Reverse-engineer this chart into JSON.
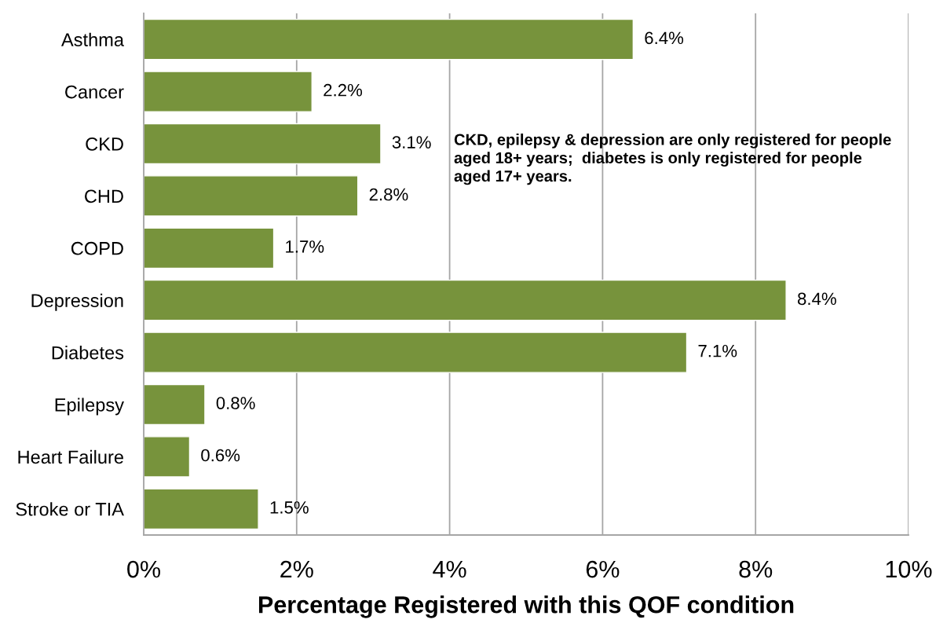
{
  "chart_data": {
    "type": "bar",
    "orientation": "horizontal",
    "categories": [
      "Asthma",
      "Cancer",
      "CKD",
      "CHD",
      "COPD",
      "Depression",
      "Diabetes",
      "Epilepsy",
      "Heart Failure",
      "Stroke or TIA"
    ],
    "values": [
      6.4,
      2.2,
      3.1,
      2.8,
      1.7,
      8.4,
      7.1,
      0.8,
      0.6,
      1.5
    ],
    "value_labels": [
      "6.4%",
      "2.2%",
      "3.1%",
      "2.8%",
      "1.7%",
      "8.4%",
      "7.1%",
      "0.8%",
      "0.6%",
      "1.5%"
    ],
    "color": "#77933c",
    "xlim": [
      0,
      10
    ],
    "xticks": [
      {
        "value": 0,
        "label": "0%"
      },
      {
        "value": 2,
        "label": "2%"
      },
      {
        "value": 4,
        "label": "4%"
      },
      {
        "value": 6,
        "label": "6%"
      },
      {
        "value": 8,
        "label": "8%"
      },
      {
        "value": 10,
        "label": "10%"
      }
    ],
    "xlabel": "Percentage Registered with this QOF condition",
    "grid": "x",
    "annotations": [
      "CKD, epilepsy & depression are only registered for people\naged 18+ years;  diabetes is only registered for people\naged 17+ years."
    ]
  }
}
